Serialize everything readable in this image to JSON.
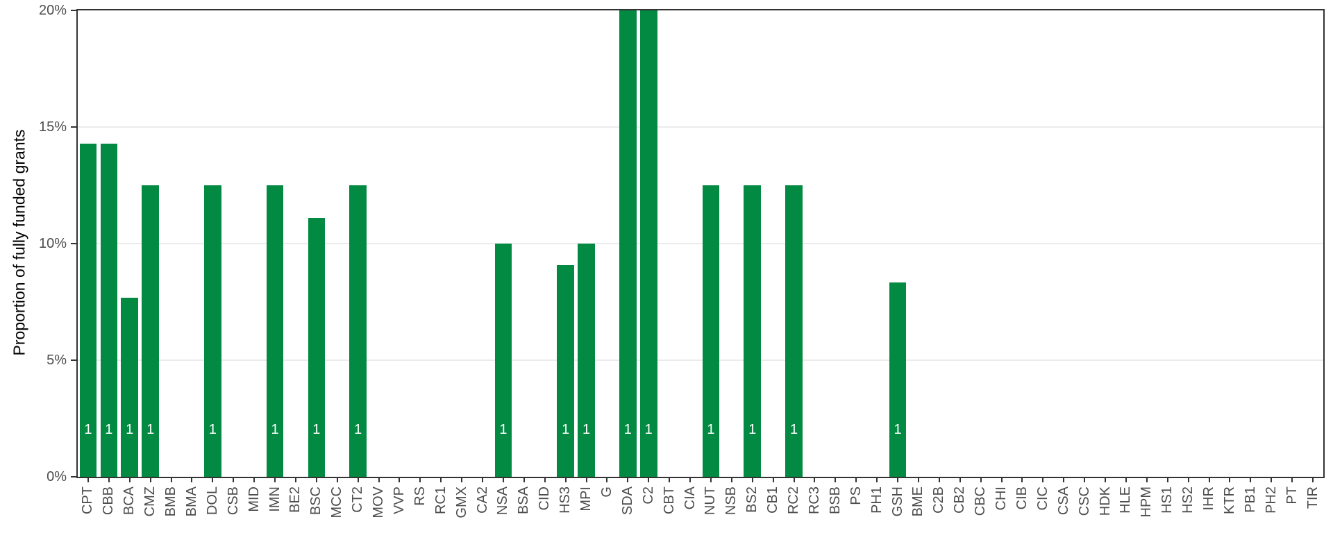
{
  "chart_data": {
    "type": "bar",
    "title": "",
    "xlabel": "",
    "ylabel": "Proportion of fully funded grants",
    "ylim": [
      0,
      20
    ],
    "yticks": [
      0,
      5,
      10,
      15,
      20
    ],
    "ytick_labels": [
      "0%",
      "5%",
      "10%",
      "15%",
      "20%"
    ],
    "grid": "horizontal-major-only",
    "legend": "none",
    "bar_color": "#028A43",
    "bar_label_color": "#ffffff",
    "categories": [
      "CPT",
      "CBB",
      "BCA",
      "CMZ",
      "BMB",
      "BMA",
      "DOL",
      "CSB",
      "MID",
      "IMN",
      "BE2",
      "BSC",
      "MCC",
      "CT2",
      "MOV",
      "VVP",
      "RS",
      "RC1",
      "GMX",
      "CA2",
      "NSA",
      "BSA",
      "CID",
      "HS3",
      "MPI",
      "G",
      "SDA",
      "C2",
      "CBT",
      "CIA",
      "NUT",
      "NSB",
      "BS2",
      "CB1",
      "RC2",
      "RC3",
      "BSB",
      "PS",
      "PH1",
      "GSH",
      "BME",
      "C2B",
      "CB2",
      "CBC",
      "CHI",
      "CIB",
      "CIC",
      "CSA",
      "CSC",
      "HDK",
      "HLE",
      "HPM",
      "HS1",
      "HS2",
      "IHR",
      "KTR",
      "PB1",
      "PH2",
      "PT",
      "TIR"
    ],
    "values": [
      14.29,
      14.29,
      7.69,
      12.5,
      0,
      0,
      12.5,
      0,
      0,
      12.5,
      0,
      11.11,
      0,
      12.5,
      0,
      0,
      0,
      0,
      0,
      0,
      10,
      0,
      0,
      9.09,
      10,
      0,
      20,
      20,
      0,
      0,
      12.5,
      0,
      12.5,
      0,
      12.5,
      0,
      0,
      0,
      0,
      8.33,
      0,
      0,
      0,
      0,
      0,
      0,
      0,
      0,
      0,
      0,
      0,
      0,
      0,
      0,
      0,
      0,
      0,
      0,
      0,
      0
    ],
    "bar_count_labels": [
      "1",
      "1",
      "1",
      "1",
      null,
      null,
      "1",
      null,
      null,
      "1",
      null,
      "1",
      null,
      "1",
      null,
      null,
      null,
      null,
      null,
      null,
      "1",
      null,
      null,
      "1",
      "1",
      null,
      "1",
      "1",
      null,
      null,
      "1",
      null,
      "1",
      null,
      "1",
      null,
      null,
      null,
      null,
      "1",
      null,
      null,
      null,
      null,
      null,
      null,
      null,
      null,
      null,
      null,
      null,
      null,
      null,
      null,
      null,
      null,
      null,
      null,
      null,
      null
    ]
  },
  "style": {
    "panel_border_color": "#333333",
    "gridline_color": "#ebebeb",
    "tick_color": "#333333",
    "tick_label_color": "#4d4d4d",
    "axis_title_color": "#000000",
    "background": "#ffffff"
  }
}
